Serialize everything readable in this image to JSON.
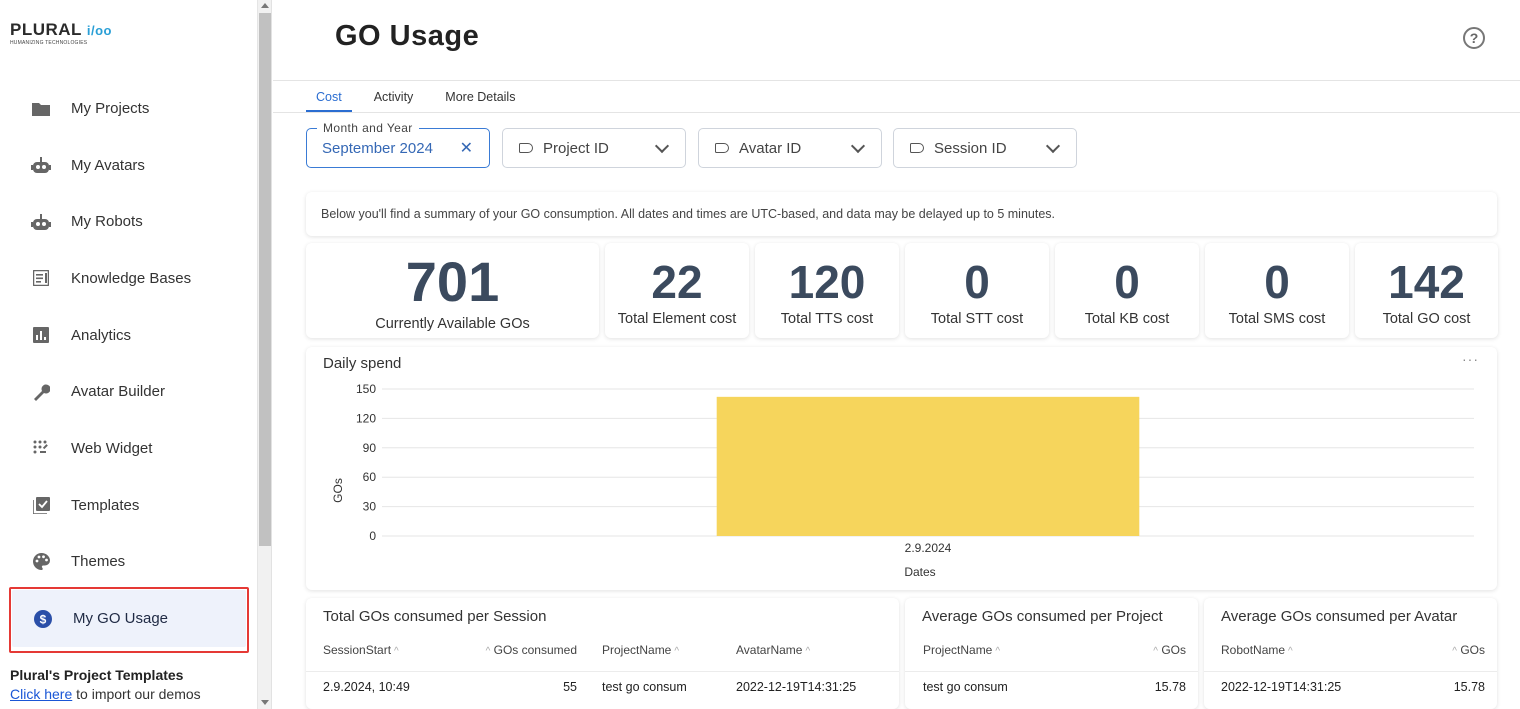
{
  "logo": {
    "word": "PLURAL",
    "suffix": "i/oo",
    "tagline": "HUMANIZING TECHNOLOGIES"
  },
  "sidebar": {
    "items": [
      {
        "label": "My Projects",
        "icon": "folder-icon"
      },
      {
        "label": "My Avatars",
        "icon": "robot-icon"
      },
      {
        "label": "My Robots",
        "icon": "robot-icon"
      },
      {
        "label": "Knowledge Bases",
        "icon": "book-icon"
      },
      {
        "label": "Analytics",
        "icon": "bar-chart-icon"
      },
      {
        "label": "Avatar Builder",
        "icon": "wrench-icon"
      },
      {
        "label": "Web Widget",
        "icon": "widget-grid-icon"
      },
      {
        "label": "Templates",
        "icon": "template-check-icon"
      },
      {
        "label": "Themes",
        "icon": "palette-icon"
      },
      {
        "label": "My GO Usage",
        "icon": "dollar-circle-icon",
        "active": true
      }
    ],
    "templates_title": "Plural's Project Templates",
    "templates_link": "Click here",
    "templates_suffix": " to import our demos"
  },
  "header": {
    "title": "GO Usage",
    "help_icon": "help-circle-icon",
    "help_glyph": "?"
  },
  "tabs": [
    "Cost",
    "Activity",
    "More Details"
  ],
  "filters": {
    "month_year": {
      "label": "Month and Year",
      "value": "September 2024",
      "clear_glyph": "✕"
    },
    "project_id": "Project ID",
    "avatar_id": "Avatar ID",
    "session_id": "Session ID"
  },
  "notice": "Below you'll find a summary of your GO consumption. All dates and times are UTC-based, and data may be delayed up to 5 minutes.",
  "stats": [
    {
      "value": "701",
      "label": "Currently Available GOs"
    },
    {
      "value": "22",
      "label": "Total Element cost"
    },
    {
      "value": "120",
      "label": "Total TTS cost"
    },
    {
      "value": "0",
      "label": "Total STT cost"
    },
    {
      "value": "0",
      "label": "Total KB cost"
    },
    {
      "value": "0",
      "label": "Total SMS cost"
    },
    {
      "value": "142",
      "label": "Total GO cost"
    }
  ],
  "chart_data": {
    "type": "bar",
    "title": "Daily spend",
    "categories": [
      "2.9.2024"
    ],
    "values": [
      142
    ],
    "xlabel": "Dates",
    "ylabel": "GOs",
    "ylim": [
      0,
      150
    ],
    "yticks": [
      0,
      30,
      60,
      90,
      120,
      150
    ],
    "color": "#f6d55c",
    "grid": true,
    "menu": "···"
  },
  "tables": {
    "session": {
      "title": "Total GOs consumed per Session",
      "headers": [
        "SessionStart",
        "GOs consumed",
        "ProjectName",
        "AvatarName"
      ],
      "rows": [
        [
          "2.9.2024, 10:49",
          "55",
          "test go consum",
          "2022-12-19T14:31:25"
        ]
      ]
    },
    "project": {
      "title": "Average GOs consumed per Project",
      "headers": [
        "ProjectName",
        "GOs"
      ],
      "rows": [
        [
          "test go consum",
          "15.78"
        ]
      ]
    },
    "avatar": {
      "title": "Average GOs consumed per Avatar",
      "headers": [
        "RobotName",
        "GOs"
      ],
      "rows": [
        [
          "2022-12-19T14:31:25",
          "15.78"
        ]
      ]
    }
  },
  "sort_glyph": "^",
  "colors": {
    "accent": "#2a6dd1",
    "highlight": "#e53935",
    "bar": "#f6d55c",
    "stat": "#3b4a5e"
  }
}
